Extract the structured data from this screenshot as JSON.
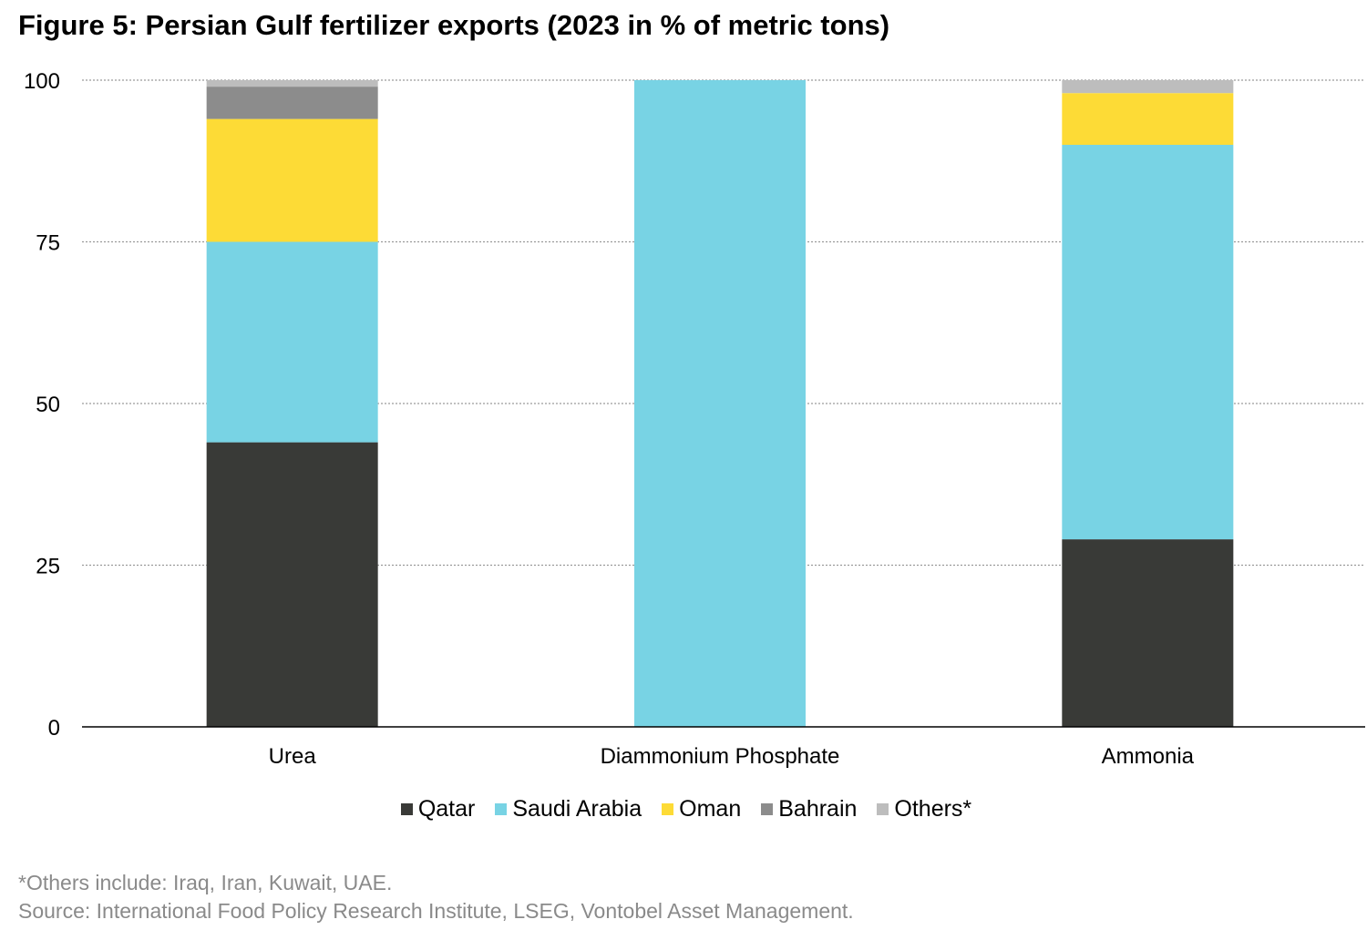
{
  "title": "Figure 5: Persian Gulf fertilizer exports (2023 in % of metric tons)",
  "chart_data": {
    "type": "bar",
    "stacked": true,
    "categories": [
      "Urea",
      "Diammonium Phosphate",
      "Ammonia"
    ],
    "series": [
      {
        "name": "Qatar",
        "color": "#393a37",
        "values": [
          44,
          0,
          29
        ]
      },
      {
        "name": "Saudi Arabia",
        "color": "#78d3e4",
        "values": [
          31,
          100,
          61
        ]
      },
      {
        "name": "Oman",
        "color": "#fddb36",
        "values": [
          19,
          0,
          8
        ]
      },
      {
        "name": "Bahrain",
        "color": "#8c8c8c",
        "values": [
          5,
          0,
          0
        ]
      },
      {
        "name": "Others*",
        "color": "#bdbdbd",
        "values": [
          1,
          0,
          2
        ]
      }
    ],
    "yticks": [
      0,
      25,
      50,
      75,
      100
    ],
    "ylim": [
      0,
      100
    ],
    "grid": true,
    "legend_position": "bottom"
  },
  "footnotes": {
    "others": "*Others include: Iraq, Iran, Kuwait, UAE.",
    "source": "Source: International Food Policy Research Institute, LSEG, Vontobel Asset Management."
  }
}
